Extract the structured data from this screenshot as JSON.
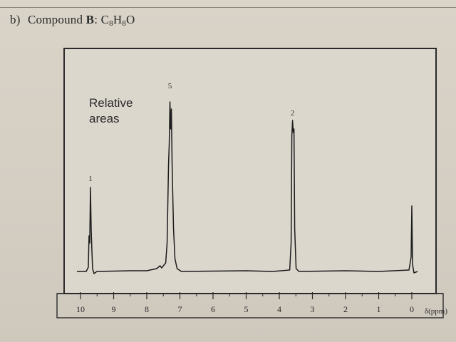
{
  "heading": {
    "part_label": "b)",
    "compound_word": "Compound",
    "compound_letter": "B",
    "formula_prefix": ": ",
    "formula": [
      {
        "el": "C",
        "n": "8"
      },
      {
        "el": "H",
        "n": "8"
      },
      {
        "el": "O",
        "n": ""
      }
    ]
  },
  "chart_data": {
    "type": "line",
    "title": "",
    "annotation": "Relative areas",
    "xlabel": "δ(ppm)",
    "xlim": [
      10.2,
      -0.1
    ],
    "x_reversed": true,
    "x_ticks": [
      10,
      9,
      8,
      7,
      6,
      5,
      4,
      3,
      2,
      1,
      0
    ],
    "x_minor_ticks": [
      9.5,
      8.5,
      7.5,
      6.5,
      5.5,
      4.5,
      3.5,
      2.5,
      1.5,
      0.5
    ],
    "peaks": [
      {
        "ppm": 9.7,
        "relative_area": "1"
      },
      {
        "ppm": 7.3,
        "relative_area": "5"
      },
      {
        "ppm": 3.6,
        "relative_area": "2"
      },
      {
        "ppm": 0.0,
        "relative_area": ""
      }
    ],
    "area_labels_order": [
      "1",
      "5",
      "2"
    ]
  },
  "colors": {
    "line": "#1c1c1c",
    "frame": "#2a2a2a",
    "plot_bg": "#dcd7cd"
  }
}
